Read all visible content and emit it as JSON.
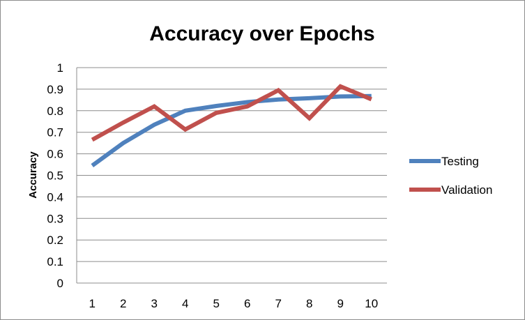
{
  "chart_data": {
    "type": "line",
    "title": "Accuracy over Epochs",
    "xlabel": "",
    "ylabel": "Accuracy",
    "x": [
      "1",
      "2",
      "3",
      "4",
      "5",
      "6",
      "7",
      "8",
      "9",
      "10"
    ],
    "y_ticks": [
      "0",
      "0.1",
      "0.2",
      "0.3",
      "0.4",
      "0.5",
      "0.6",
      "0.7",
      "0.8",
      "0.9",
      "1"
    ],
    "ylim": [
      0,
      1
    ],
    "grid": "horizontal",
    "legend_position": "right",
    "series": [
      {
        "name": "Testing",
        "color": "#4f81bd",
        "values": [
          0.545,
          0.65,
          0.735,
          0.8,
          0.822,
          0.84,
          0.852,
          0.858,
          0.866,
          0.868
        ]
      },
      {
        "name": "Validation",
        "color": "#c0504d",
        "values": [
          0.665,
          0.745,
          0.82,
          0.713,
          0.79,
          0.82,
          0.895,
          0.765,
          0.913,
          0.853
        ]
      }
    ]
  }
}
